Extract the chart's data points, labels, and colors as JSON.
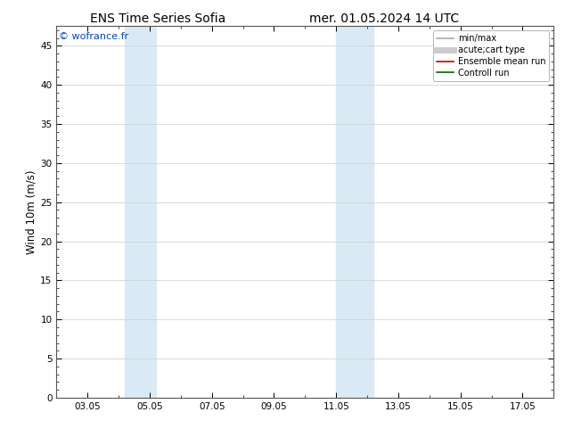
{
  "title_left": "ENS Time Series Sofia",
  "title_right": "mer. 01.05.2024 14 UTC",
  "ylabel": "Wind 10m (m/s)",
  "watermark": "© wofrance.fr",
  "ylim": [
    0,
    47.5
  ],
  "yticks": [
    0,
    5,
    10,
    15,
    20,
    25,
    30,
    35,
    40,
    45
  ],
  "xtick_labels": [
    "03.05",
    "05.05",
    "07.05",
    "09.05",
    "11.05",
    "13.05",
    "15.05",
    "17.05"
  ],
  "xtick_positions": [
    3,
    5,
    7,
    9,
    11,
    13,
    15,
    17
  ],
  "xlim": [
    2.0,
    18.0
  ],
  "shade_bands": [
    {
      "xmin": 4.2,
      "xmax": 5.2
    },
    {
      "xmin": 11.0,
      "xmax": 12.2
    }
  ],
  "shade_color": "#daeaf5",
  "legend_items": [
    {
      "label": "min/max",
      "color": "#aaaaaa",
      "lw": 1.2
    },
    {
      "label": "acute;cart type",
      "color": "#cccccc",
      "lw": 5
    },
    {
      "label": "Ensemble mean run",
      "color": "#cc0000",
      "lw": 1.2
    },
    {
      "label": "Controll run",
      "color": "#006600",
      "lw": 1.2
    }
  ],
  "bg_color": "#ffffff",
  "grid_color": "#cccccc",
  "title_fontsize": 10,
  "tick_fontsize": 7.5,
  "ylabel_fontsize": 8.5,
  "legend_fontsize": 7,
  "watermark_fontsize": 8
}
